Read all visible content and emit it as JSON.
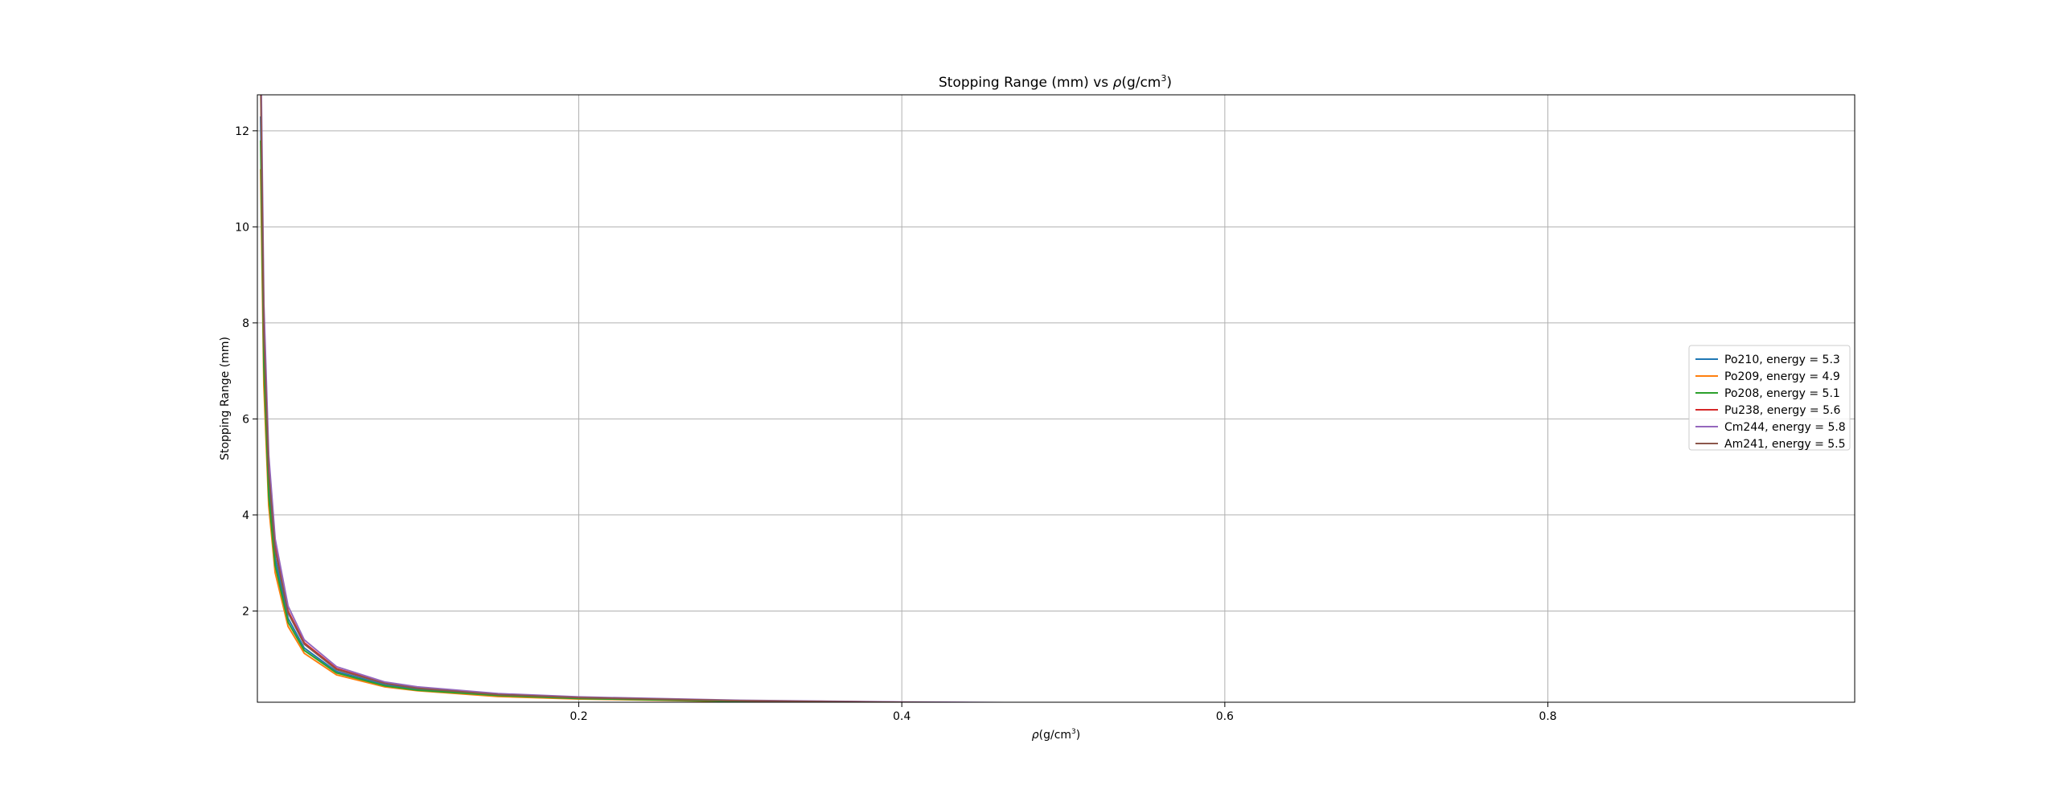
{
  "chart_data": {
    "type": "line",
    "title_main": "Stopping Range (mm) vs ",
    "title_rho": "ρ",
    "title_unit": "(g/cm",
    "title_sup": "3",
    "title_close": ")",
    "xlabel_rho": "ρ",
    "xlabel_unit": "(g/cm",
    "xlabel_sup": "3",
    "xlabel_close": ")",
    "ylabel": "Stopping Range (mm)",
    "xlim": [
      0.001,
      0.99
    ],
    "ylim": [
      0.1,
      12.75
    ],
    "grid": true,
    "legend_position": "center-right",
    "x_ticks": [
      {
        "value": 0.2,
        "label": "0.2"
      },
      {
        "value": 0.4,
        "label": "0.4"
      },
      {
        "value": 0.6,
        "label": "0.6"
      },
      {
        "value": 0.8,
        "label": "0.8"
      }
    ],
    "y_ticks": [
      {
        "value": 2,
        "label": "2"
      },
      {
        "value": 4,
        "label": "4"
      },
      {
        "value": 6,
        "label": "6"
      },
      {
        "value": 8,
        "label": "8"
      },
      {
        "value": 10,
        "label": "10"
      },
      {
        "value": 12,
        "label": "12"
      }
    ],
    "x": [
      0.003,
      0.005,
      0.008,
      0.012,
      0.02,
      0.03,
      0.05,
      0.08,
      0.1,
      0.15,
      0.2,
      0.3,
      0.4,
      0.5,
      0.6,
      0.8,
      0.99
    ],
    "series": [
      {
        "name": "Po210, energy = 5.3",
        "color": "#1f77b4",
        "values": [
          12.3,
          7.4,
          4.6,
          3.1,
          1.85,
          1.23,
          0.74,
          0.46,
          0.37,
          0.25,
          0.185,
          0.123,
          0.092,
          0.074,
          0.062,
          0.046,
          0.037
        ]
      },
      {
        "name": "Po209, energy = 4.9",
        "color": "#ff7f0e",
        "values": [
          11.2,
          6.7,
          4.2,
          2.8,
          1.68,
          1.12,
          0.67,
          0.42,
          0.34,
          0.22,
          0.168,
          0.112,
          0.084,
          0.067,
          0.056,
          0.042,
          0.034
        ]
      },
      {
        "name": "Po208, energy = 5.1",
        "color": "#2ca02c",
        "values": [
          11.8,
          7.1,
          4.4,
          2.95,
          1.77,
          1.18,
          0.71,
          0.44,
          0.35,
          0.24,
          0.177,
          0.118,
          0.089,
          0.071,
          0.059,
          0.044,
          0.036
        ]
      },
      {
        "name": "Pu238, energy = 5.6",
        "color": "#d62728",
        "values": [
          13.4,
          8.0,
          5.0,
          3.35,
          2.0,
          1.34,
          0.8,
          0.5,
          0.4,
          0.27,
          0.2,
          0.134,
          0.1,
          0.08,
          0.067,
          0.05,
          0.041
        ]
      },
      {
        "name": "Cm244, energy = 5.8",
        "color": "#9467bd",
        "values": [
          14.0,
          8.4,
          5.25,
          3.5,
          2.1,
          1.4,
          0.84,
          0.52,
          0.42,
          0.28,
          0.21,
          0.14,
          0.105,
          0.084,
          0.07,
          0.052,
          0.042
        ]
      },
      {
        "name": "Am241, energy = 5.5",
        "color": "#8c564b",
        "values": [
          13.1,
          7.8,
          4.9,
          3.27,
          1.96,
          1.31,
          0.78,
          0.49,
          0.39,
          0.26,
          0.196,
          0.131,
          0.098,
          0.078,
          0.065,
          0.049,
          0.04
        ]
      }
    ]
  }
}
